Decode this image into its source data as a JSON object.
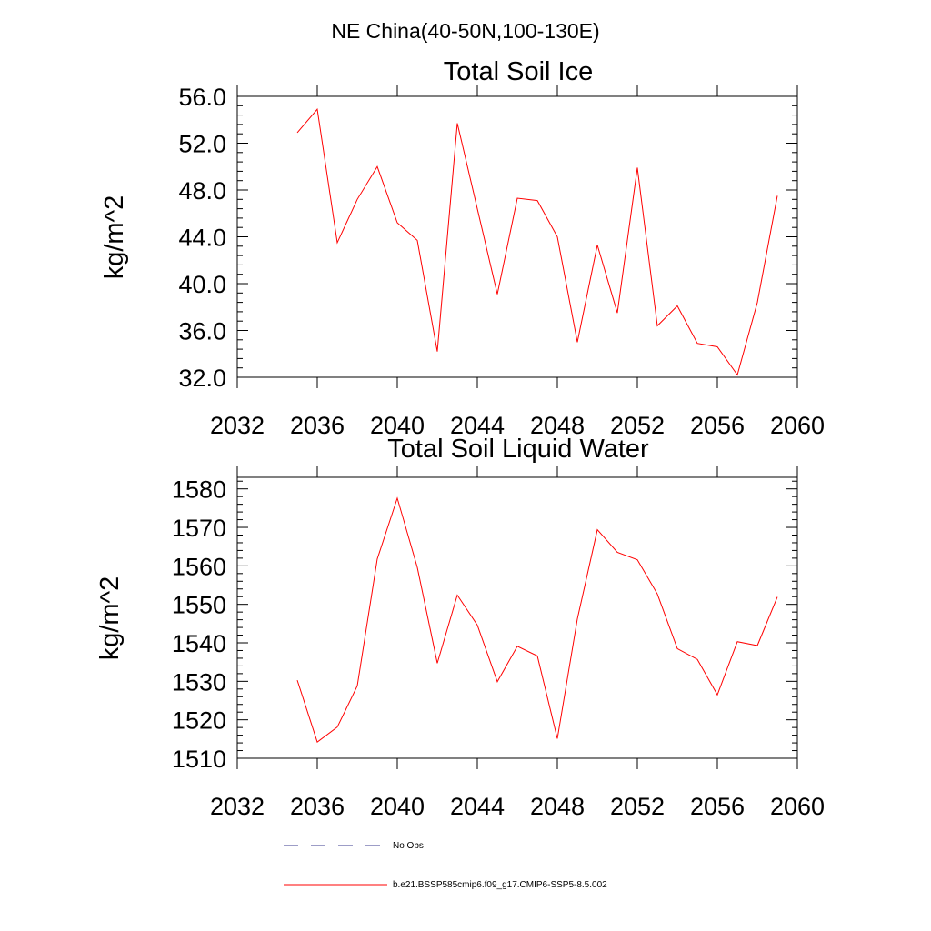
{
  "figure": {
    "title": "NE China(40-50N,100-130E)"
  },
  "colors": {
    "series": "#ff0000",
    "obs": "#3b3b8f",
    "axis": "#000000"
  },
  "chart_data": [
    {
      "type": "line",
      "title": "Total Soil Ice",
      "xlabel": "",
      "ylabel": "kg/m^2",
      "xlim": [
        2032,
        2060
      ],
      "ylim": [
        32,
        56
      ],
      "xticks": [
        2032,
        2036,
        2040,
        2044,
        2048,
        2052,
        2056,
        2060
      ],
      "yticks": [
        32,
        36,
        40,
        44,
        48,
        52,
        56
      ],
      "ytick_labels": [
        "32.0",
        "36.0",
        "40.0",
        "44.0",
        "48.0",
        "52.0",
        "56.0"
      ],
      "grid": false,
      "series": [
        {
          "name": "b.e21.BSSP585cmip6.f09_g17.CMIP6-SSP5-8.5.002",
          "x": [
            2035,
            2036,
            2037,
            2038,
            2039,
            2040,
            2041,
            2042,
            2043,
            2044,
            2045,
            2046,
            2047,
            2048,
            2049,
            2050,
            2051,
            2052,
            2053,
            2054,
            2055,
            2056,
            2057,
            2058,
            2059
          ],
          "values": [
            52.9,
            54.9,
            43.5,
            47.2,
            50.0,
            45.2,
            43.7,
            34.2,
            53.7,
            46.4,
            39.1,
            47.3,
            47.1,
            44.0,
            35.0,
            43.3,
            37.5,
            49.9,
            36.4,
            38.1,
            34.9,
            34.6,
            32.2,
            38.4,
            47.5
          ]
        }
      ]
    },
    {
      "type": "line",
      "title": "Total Soil Liquid Water",
      "xlabel": "",
      "ylabel": "kg/m^2",
      "xlim": [
        2032,
        2060
      ],
      "ylim": [
        1510,
        1583
      ],
      "xticks": [
        2032,
        2036,
        2040,
        2044,
        2048,
        2052,
        2056,
        2060
      ],
      "yticks": [
        1510,
        1520,
        1530,
        1540,
        1550,
        1560,
        1570,
        1580
      ],
      "ytick_labels": [
        "1510",
        "1520",
        "1530",
        "1540",
        "1550",
        "1560",
        "1570",
        "1580"
      ],
      "grid": false,
      "series": [
        {
          "name": "b.e21.BSSP585cmip6.f09_g17.CMIP6-SSP5-8.5.002",
          "x": [
            2035,
            2036,
            2037,
            2038,
            2039,
            2040,
            2041,
            2042,
            2043,
            2044,
            2045,
            2046,
            2047,
            2048,
            2049,
            2050,
            2051,
            2052,
            2053,
            2054,
            2055,
            2056,
            2057,
            2058,
            2059
          ],
          "values": [
            1530.3,
            1514.2,
            1518.1,
            1528.8,
            1561.8,
            1577.6,
            1559.6,
            1534.7,
            1552.4,
            1544.6,
            1529.9,
            1539.1,
            1536.6,
            1515.1,
            1546.2,
            1569.4,
            1563.5,
            1561.6,
            1552.7,
            1538.5,
            1535.7,
            1526.5,
            1540.3,
            1539.3,
            1551.9
          ]
        }
      ]
    }
  ],
  "legend": {
    "placement": "bottom",
    "items": [
      {
        "label": "No Obs",
        "style": "dashed",
        "color": "#3b3b8f"
      },
      {
        "label": "b.e21.BSSP585cmip6.f09_g17.CMIP6-SSP5-8.5.002",
        "style": "solid",
        "color": "#ff0000"
      }
    ]
  }
}
